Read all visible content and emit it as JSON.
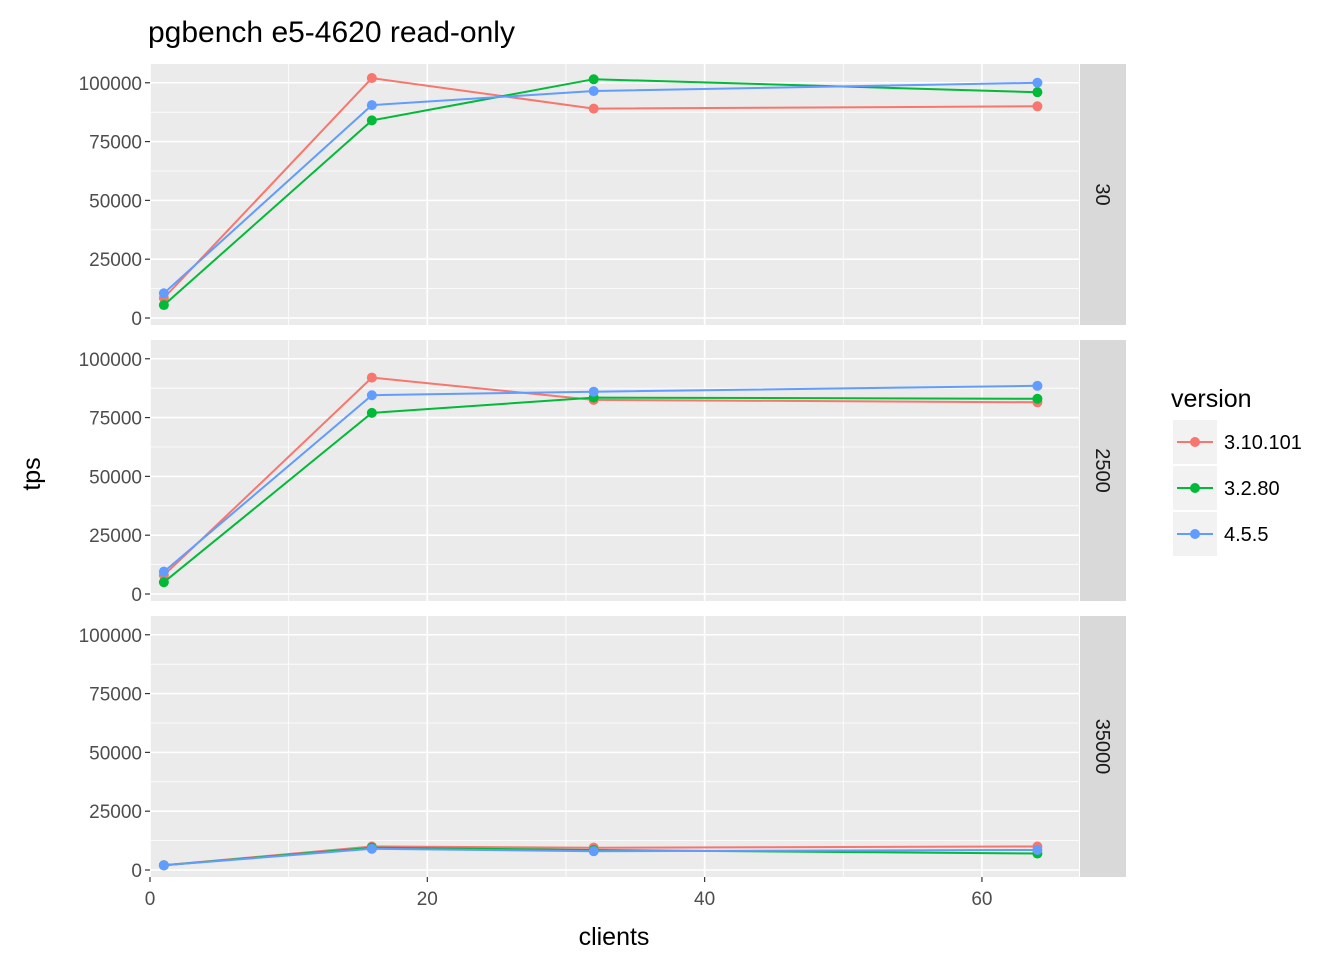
{
  "chart_data": {
    "type": "line",
    "title": "pgbench e5-4620 read-only",
    "xlabel": "clients",
    "ylabel": "tps",
    "x": [
      1,
      16,
      32,
      64
    ],
    "xlim": [
      0,
      67
    ],
    "x_ticks": [
      0,
      20,
      40,
      60
    ],
    "ylim": [
      0,
      105000
    ],
    "y_ticks": [
      0,
      25000,
      50000,
      75000,
      100000
    ],
    "grid": true,
    "facet_rows": [
      "30",
      "2500",
      "35000"
    ],
    "legend": {
      "title": "version",
      "placement": "right",
      "entries": [
        "3.10.101",
        "3.2.80",
        "4.5.5"
      ]
    },
    "colors": {
      "3.10.101": "#F8766D",
      "3.2.80": "#00BA38",
      "4.5.5": "#619CFF"
    },
    "panels": [
      {
        "facet": "30",
        "series": [
          {
            "name": "3.10.101",
            "values": [
              8500,
              102000,
              89000,
              90000
            ]
          },
          {
            "name": "3.2.80",
            "values": [
              5500,
              84000,
              101500,
              96000
            ]
          },
          {
            "name": "4.5.5",
            "values": [
              10500,
              90500,
              96500,
              100000
            ]
          }
        ]
      },
      {
        "facet": "2500",
        "series": [
          {
            "name": "3.10.101",
            "values": [
              8000,
              92000,
              82500,
              81500
            ]
          },
          {
            "name": "3.2.80",
            "values": [
              5000,
              77000,
              83500,
              83000
            ]
          },
          {
            "name": "4.5.5",
            "values": [
              9500,
              84500,
              86000,
              88500
            ]
          }
        ]
      },
      {
        "facet": "35000",
        "series": [
          {
            "name": "3.10.101",
            "values": [
              2000,
              10000,
              9500,
              10000
            ]
          },
          {
            "name": "3.2.80",
            "values": [
              2000,
              9500,
              8500,
              7000
            ]
          },
          {
            "name": "4.5.5",
            "values": [
              2000,
              9000,
              8000,
              8500
            ]
          }
        ]
      }
    ]
  }
}
